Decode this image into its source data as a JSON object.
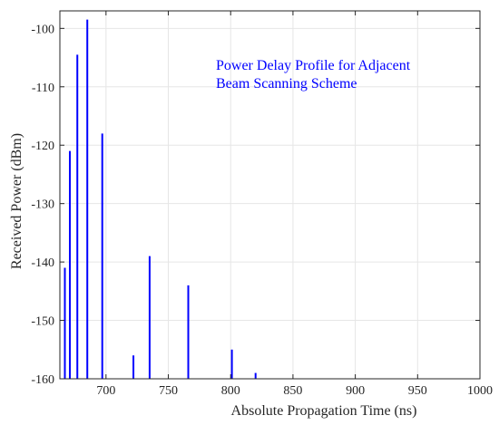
{
  "chart_data": {
    "type": "stem",
    "title": "",
    "annotation_lines": [
      "Power Delay Profile for Adjacent",
      "Beam Scanning Scheme"
    ],
    "xlabel": "Absolute Propagation Time (ns)",
    "ylabel": "Received Power (dBm)",
    "xlim": [
      663,
      1000
    ],
    "ylim": [
      -160,
      -97
    ],
    "x_ticks": [
      700,
      750,
      800,
      850,
      900,
      950,
      1000
    ],
    "y_ticks": [
      -100,
      -110,
      -120,
      -130,
      -140,
      -150,
      -160
    ],
    "grid": true,
    "series": [
      {
        "x": [
          667,
          671,
          677,
          685,
          697,
          722,
          735,
          766,
          801,
          820
        ],
        "values": [
          -141,
          -121,
          -104.5,
          -98.5,
          -118,
          -156,
          -139,
          -144,
          -155,
          -159
        ]
      }
    ]
  },
  "colors": {
    "series": "#0000ff",
    "annotation": "#0000ff",
    "grid": "#e6e6e6",
    "axis": "#262626",
    "text": "#262626"
  }
}
